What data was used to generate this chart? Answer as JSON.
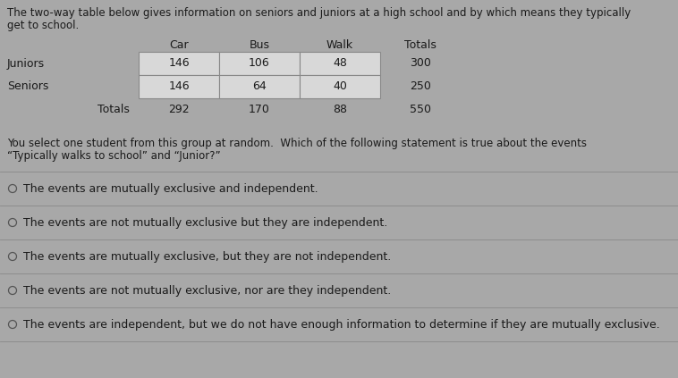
{
  "title_line1": "The two-way table below gives information on seniors and juniors at a high school and by which means they typically",
  "title_line2": "get to school.",
  "col_headers": [
    "Car",
    "Bus",
    "Walk",
    "Totals"
  ],
  "row_labels": [
    "Juniors",
    "Seniors",
    "Totals"
  ],
  "table_data": [
    [
      146,
      106,
      48,
      300
    ],
    [
      146,
      64,
      40,
      250
    ],
    [
      292,
      170,
      88,
      550
    ]
  ],
  "question_line1": "You select one student from this group at random.  Which of the following statement is true about the events",
  "question_line2": "“Typically walks to school” and “Junior?”",
  "options": [
    "The events are mutually exclusive and independent.",
    "The events are not mutually exclusive but they are independent.",
    "The events are mutually exclusive, but they are not independent.",
    "The events are not mutually exclusive, nor are they independent.",
    "The events are independent, but we do not have enough information to determine if they are mutually exclusive."
  ],
  "bg_color": "#a8a8a8",
  "cell_color": "#d8d8d8",
  "cell_edge_color": "#888888",
  "text_color": "#1a1a1a",
  "line_color": "#888888",
  "title_fontsize": 8.5,
  "table_fontsize": 9.0,
  "question_fontsize": 8.5,
  "option_fontsize": 9.0
}
